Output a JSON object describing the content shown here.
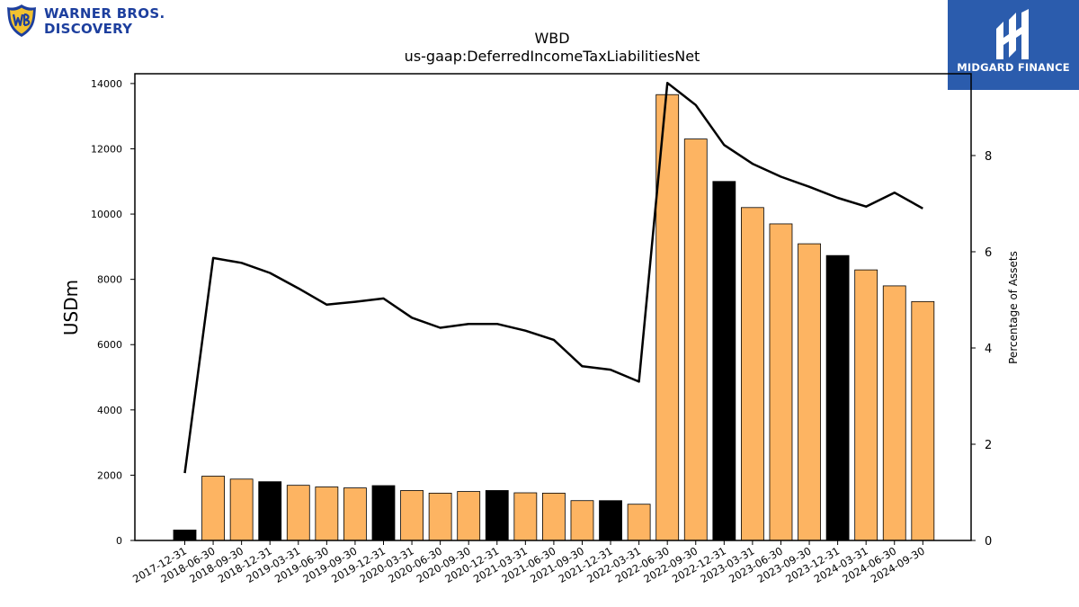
{
  "logos": {
    "left": {
      "line1": "WARNER BROS.",
      "line2": "DISCOVERY",
      "icon": "wb-shield-icon",
      "color": "#1d3f9e"
    },
    "right": {
      "text": "MIDGARD FINANCE",
      "icon": "midgard-mark-icon",
      "background": "#2b5cad"
    }
  },
  "chart_data": {
    "type": "bar",
    "title": "WBD",
    "subtitle": "us-gaap:DeferredIncomeTaxLiabilitiesNet",
    "ylabel": "USDm",
    "y2label": "Percentage of Assets",
    "ylim": [
      0,
      14300
    ],
    "y2lim": [
      0,
      9.7
    ],
    "yticks": [
      0,
      2000,
      4000,
      6000,
      8000,
      10000,
      12000,
      14000
    ],
    "y2ticks": [
      0,
      2,
      4,
      6,
      8
    ],
    "grid": false,
    "colors": {
      "annual": "#000000",
      "quarterly": "#fdb462",
      "line": "#000000"
    },
    "categories": [
      "2017-12-31",
      "2018-06-30",
      "2018-09-30",
      "2018-12-31",
      "2019-03-31",
      "2019-06-30",
      "2019-09-30",
      "2019-12-31",
      "2020-03-31",
      "2020-06-30",
      "2020-09-30",
      "2020-12-31",
      "2021-03-31",
      "2021-06-30",
      "2021-09-30",
      "2021-12-31",
      "2022-03-31",
      "2022-06-30",
      "2022-09-30",
      "2022-12-31",
      "2023-03-31",
      "2023-06-30",
      "2023-09-30",
      "2023-12-31",
      "2024-03-31",
      "2024-06-30",
      "2024-09-30"
    ],
    "series": [
      {
        "type": "bar",
        "values": [
          320,
          1970,
          1880,
          1800,
          1690,
          1640,
          1610,
          1680,
          1530,
          1450,
          1500,
          1530,
          1460,
          1450,
          1220,
          1220,
          1110,
          13660,
          12300,
          11000,
          10200,
          9700,
          9090,
          8730,
          8290,
          7800,
          7320
        ],
        "annual": [
          true,
          false,
          false,
          true,
          false,
          false,
          false,
          true,
          false,
          false,
          false,
          true,
          false,
          false,
          false,
          true,
          false,
          false,
          false,
          true,
          false,
          false,
          false,
          true,
          false,
          false,
          false
        ]
      },
      {
        "type": "line",
        "axis": "right",
        "values": [
          1.4,
          5.87,
          5.77,
          5.56,
          5.24,
          4.9,
          4.96,
          5.03,
          4.63,
          4.42,
          4.5,
          4.5,
          4.36,
          4.17,
          3.62,
          3.55,
          3.3,
          9.51,
          9.05,
          8.22,
          7.83,
          7.56,
          7.35,
          7.12,
          6.94,
          7.23,
          6.9
        ]
      }
    ]
  }
}
